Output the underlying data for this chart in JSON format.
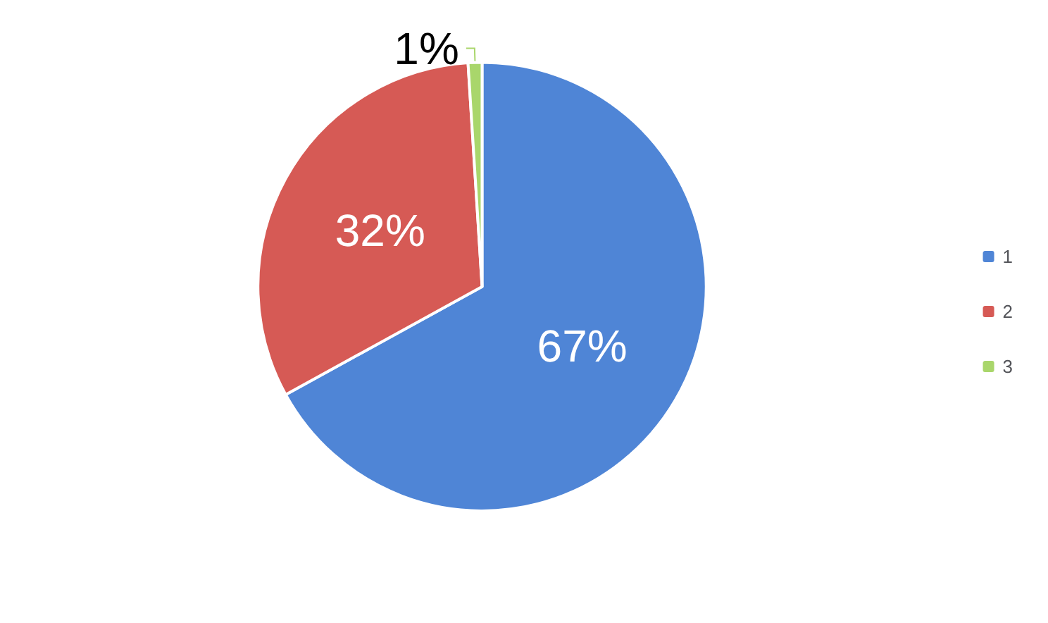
{
  "chart_data": {
    "type": "pie",
    "categories": [
      "1",
      "2",
      "3"
    ],
    "values": [
      67,
      32,
      1
    ],
    "colors": [
      "#4f85d6",
      "#d65a55",
      "#a9d66b"
    ],
    "value_labels": [
      "67%",
      "32%",
      "1%"
    ],
    "legend": "right"
  }
}
